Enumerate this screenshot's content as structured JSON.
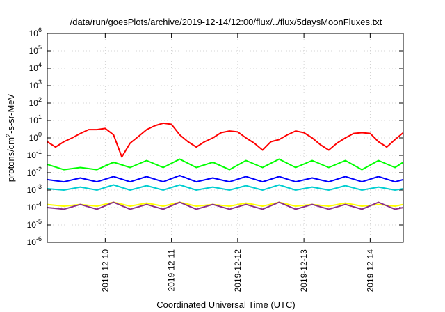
{
  "chart_data": {
    "type": "line",
    "title": "/data/run/goesPlots/archive/2019-12-14/12:00/flux/../flux/5daysMoonFluxes.txt",
    "xlabel": "Coordinated Universal Time (UTC)",
    "ylabel": {
      "before": "protons/cm",
      "sup": "2",
      "after": "-s-sr-MeV"
    },
    "yscale": "log",
    "ylim": [
      1e-06,
      1000000.0
    ],
    "ytick_exponents": [
      -6,
      -5,
      -4,
      -3,
      -2,
      -1,
      0,
      1,
      2,
      3,
      4,
      5,
      6
    ],
    "ytick_base": "10",
    "xlim": [
      "2019-12-09T03:00",
      "2019-12-14T12:00"
    ],
    "xticks": [
      "2019-12-10",
      "2019-12-11",
      "2019-12-12",
      "2019-12-13",
      "2019-12-14"
    ],
    "grid": true,
    "legend": "none",
    "series": [
      {
        "color": "#ff0000",
        "x": [
          "2019-12-09T03:00",
          "2019-12-09T06:00",
          "2019-12-09T09:00",
          "2019-12-09T12:00",
          "2019-12-09T15:00",
          "2019-12-09T18:00",
          "2019-12-09T21:00",
          "2019-12-10T00:00",
          "2019-12-10T03:00",
          "2019-12-10T06:00",
          "2019-12-10T09:00",
          "2019-12-10T12:00",
          "2019-12-10T15:00",
          "2019-12-10T18:00",
          "2019-12-10T21:00",
          "2019-12-11T00:00",
          "2019-12-11T03:00",
          "2019-12-11T06:00",
          "2019-12-11T09:00",
          "2019-12-11T12:00",
          "2019-12-11T15:00",
          "2019-12-11T18:00",
          "2019-12-11T21:00",
          "2019-12-12T00:00",
          "2019-12-12T03:00",
          "2019-12-12T06:00",
          "2019-12-12T09:00",
          "2019-12-12T12:00",
          "2019-12-12T15:00",
          "2019-12-12T18:00",
          "2019-12-12T21:00",
          "2019-12-13T00:00",
          "2019-12-13T03:00",
          "2019-12-13T06:00",
          "2019-12-13T09:00",
          "2019-12-13T12:00",
          "2019-12-13T15:00",
          "2019-12-13T18:00",
          "2019-12-13T21:00",
          "2019-12-14T00:00",
          "2019-12-14T03:00",
          "2019-12-14T06:00",
          "2019-12-14T09:00",
          "2019-12-14T12:00"
        ],
        "values": [
          0.6,
          0.3,
          0.6,
          1.0,
          1.8,
          3.0,
          3.0,
          3.5,
          1.5,
          0.08,
          0.5,
          1.2,
          3.0,
          5.0,
          7.0,
          6.0,
          1.5,
          0.6,
          0.3,
          0.6,
          1.0,
          2.0,
          2.5,
          2.2,
          1.0,
          0.5,
          0.2,
          0.6,
          0.8,
          1.5,
          2.5,
          2.0,
          1.0,
          0.4,
          0.2,
          0.5,
          1.0,
          1.8,
          2.0,
          1.8,
          0.6,
          0.3,
          0.8,
          2.0
        ]
      },
      {
        "color": "#00ff00",
        "x": [
          "2019-12-09T03:00",
          "2019-12-09T09:00",
          "2019-12-09T15:00",
          "2019-12-09T21:00",
          "2019-12-10T03:00",
          "2019-12-10T09:00",
          "2019-12-10T15:00",
          "2019-12-10T21:00",
          "2019-12-11T03:00",
          "2019-12-11T09:00",
          "2019-12-11T15:00",
          "2019-12-11T21:00",
          "2019-12-12T03:00",
          "2019-12-12T09:00",
          "2019-12-12T15:00",
          "2019-12-12T21:00",
          "2019-12-13T03:00",
          "2019-12-13T09:00",
          "2019-12-13T15:00",
          "2019-12-13T21:00",
          "2019-12-14T03:00",
          "2019-12-14T09:00",
          "2019-12-14T12:00"
        ],
        "values": [
          0.03,
          0.015,
          0.02,
          0.015,
          0.04,
          0.02,
          0.05,
          0.02,
          0.06,
          0.02,
          0.04,
          0.015,
          0.05,
          0.02,
          0.06,
          0.02,
          0.05,
          0.02,
          0.05,
          0.015,
          0.05,
          0.02,
          0.04
        ]
      },
      {
        "color": "#0000ff",
        "x": [
          "2019-12-09T03:00",
          "2019-12-09T09:00",
          "2019-12-09T15:00",
          "2019-12-09T21:00",
          "2019-12-10T03:00",
          "2019-12-10T09:00",
          "2019-12-10T15:00",
          "2019-12-10T21:00",
          "2019-12-11T03:00",
          "2019-12-11T09:00",
          "2019-12-11T15:00",
          "2019-12-11T21:00",
          "2019-12-12T03:00",
          "2019-12-12T09:00",
          "2019-12-12T15:00",
          "2019-12-12T21:00",
          "2019-12-13T03:00",
          "2019-12-13T09:00",
          "2019-12-13T15:00",
          "2019-12-13T21:00",
          "2019-12-14T03:00",
          "2019-12-14T09:00",
          "2019-12-14T12:00"
        ],
        "values": [
          0.004,
          0.003,
          0.005,
          0.003,
          0.006,
          0.003,
          0.006,
          0.003,
          0.007,
          0.003,
          0.005,
          0.003,
          0.006,
          0.003,
          0.006,
          0.003,
          0.005,
          0.003,
          0.006,
          0.003,
          0.006,
          0.003,
          0.004
        ]
      },
      {
        "color": "#00ced1",
        "x": [
          "2019-12-09T03:00",
          "2019-12-09T09:00",
          "2019-12-09T15:00",
          "2019-12-09T21:00",
          "2019-12-10T03:00",
          "2019-12-10T09:00",
          "2019-12-10T15:00",
          "2019-12-10T21:00",
          "2019-12-11T03:00",
          "2019-12-11T09:00",
          "2019-12-11T15:00",
          "2019-12-11T21:00",
          "2019-12-12T03:00",
          "2019-12-12T09:00",
          "2019-12-12T15:00",
          "2019-12-12T21:00",
          "2019-12-13T03:00",
          "2019-12-13T09:00",
          "2019-12-13T15:00",
          "2019-12-13T21:00",
          "2019-12-14T03:00",
          "2019-12-14T09:00",
          "2019-12-14T12:00"
        ],
        "values": [
          0.0012,
          0.001,
          0.0015,
          0.001,
          0.002,
          0.001,
          0.0018,
          0.001,
          0.002,
          0.001,
          0.0015,
          0.001,
          0.0018,
          0.001,
          0.002,
          0.001,
          0.0015,
          0.001,
          0.0018,
          0.001,
          0.0015,
          0.001,
          0.0012
        ]
      },
      {
        "color": "#ffff00",
        "x": [
          "2019-12-09T03:00",
          "2019-12-09T09:00",
          "2019-12-09T15:00",
          "2019-12-09T21:00",
          "2019-12-10T03:00",
          "2019-12-10T09:00",
          "2019-12-10T15:00",
          "2019-12-10T21:00",
          "2019-12-11T03:00",
          "2019-12-11T09:00",
          "2019-12-11T15:00",
          "2019-12-11T21:00",
          "2019-12-12T03:00",
          "2019-12-12T09:00",
          "2019-12-12T15:00",
          "2019-12-12T21:00",
          "2019-12-13T03:00",
          "2019-12-13T09:00",
          "2019-12-13T15:00",
          "2019-12-13T21:00",
          "2019-12-14T03:00",
          "2019-12-14T09:00",
          "2019-12-14T12:00"
        ],
        "values": [
          0.00015,
          0.00012,
          0.00015,
          0.00012,
          0.0002,
          0.00012,
          0.00018,
          0.00012,
          0.0002,
          0.00012,
          0.00015,
          0.00012,
          0.00018,
          0.00012,
          0.0002,
          0.00012,
          0.00015,
          0.00012,
          0.00018,
          0.00012,
          0.00015,
          0.00012,
          0.00015
        ]
      },
      {
        "color": "#8b2e8b",
        "x": [
          "2019-12-09T03:00",
          "2019-12-09T09:00",
          "2019-12-09T15:00",
          "2019-12-09T21:00",
          "2019-12-10T03:00",
          "2019-12-10T09:00",
          "2019-12-10T15:00",
          "2019-12-10T21:00",
          "2019-12-11T03:00",
          "2019-12-11T09:00",
          "2019-12-11T15:00",
          "2019-12-11T21:00",
          "2019-12-12T03:00",
          "2019-12-12T09:00",
          "2019-12-12T15:00",
          "2019-12-12T21:00",
          "2019-12-13T03:00",
          "2019-12-13T09:00",
          "2019-12-13T15:00",
          "2019-12-13T21:00",
          "2019-12-14T03:00",
          "2019-12-14T09:00",
          "2019-12-14T12:00"
        ],
        "values": [
          0.0001,
          8e-05,
          0.00015,
          8e-05,
          0.0002,
          8e-05,
          0.00015,
          8e-05,
          0.0002,
          8e-05,
          0.00015,
          8e-05,
          0.00015,
          8e-05,
          0.0002,
          8e-05,
          0.00015,
          8e-05,
          0.00015,
          8e-05,
          0.0002,
          8e-05,
          0.0001
        ]
      }
    ]
  }
}
